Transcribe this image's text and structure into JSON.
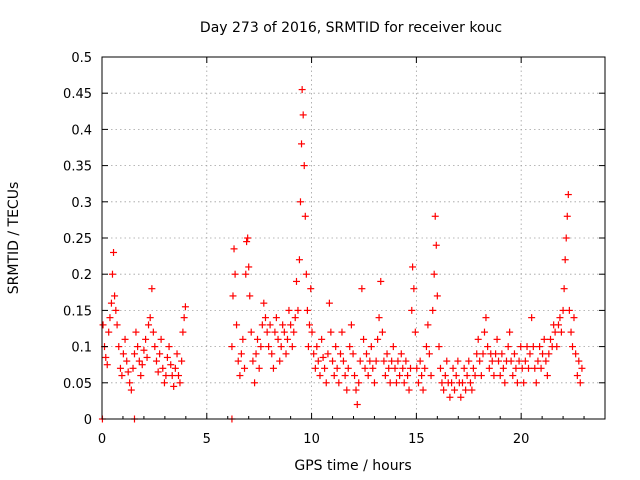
{
  "chart_data": {
    "type": "scatter",
    "title": "Day 273 of 2016, SRMTID for receiver kouc",
    "xlabel": "GPS time / hours",
    "ylabel": "SRMTID / TECUs",
    "xlim": [
      0,
      24
    ],
    "ylim": [
      0,
      0.5
    ],
    "xticks": [
      0,
      5,
      10,
      15,
      20
    ],
    "xtick_labels": [
      "0",
      "5",
      "10",
      "15",
      "20"
    ],
    "yticks": [
      0,
      0.05,
      0.1,
      0.15,
      0.2,
      0.25,
      0.3,
      0.35,
      0.4,
      0.45,
      0.5
    ],
    "ytick_labels": [
      "0",
      "0.05",
      "0.1",
      "0.15",
      "0.2",
      "0.25",
      "0.3",
      "0.35",
      "0.4",
      "0.45",
      "0.5"
    ],
    "grid": true,
    "marker": "+",
    "color": "#ff0000",
    "series": [
      {
        "name": "SRMTID",
        "points": [
          [
            0.05,
            0.13
          ],
          [
            0.12,
            0.1
          ],
          [
            0.18,
            0.085
          ],
          [
            0.25,
            0.075
          ],
          [
            0.32,
            0.12
          ],
          [
            0.38,
            0.14
          ],
          [
            0.45,
            0.16
          ],
          [
            0.5,
            0.2
          ],
          [
            0.55,
            0.23
          ],
          [
            0.6,
            0.17
          ],
          [
            0.66,
            0.15
          ],
          [
            0.72,
            0.13
          ],
          [
            0.8,
            0.1
          ],
          [
            0.88,
            0.07
          ],
          [
            0.95,
            0.06
          ],
          [
            1.02,
            0.09
          ],
          [
            1.1,
            0.11
          ],
          [
            1.18,
            0.08
          ],
          [
            1.25,
            0.065
          ],
          [
            1.32,
            0.05
          ],
          [
            1.4,
            0.04
          ],
          [
            1.48,
            0.07
          ],
          [
            1.55,
            0.09
          ],
          [
            1.62,
            0.12
          ],
          [
            1.7,
            0.1
          ],
          [
            1.78,
            0.08
          ],
          [
            1.85,
            0.06
          ],
          [
            1.92,
            0.075
          ],
          [
            2.0,
            0.095
          ],
          [
            2.08,
            0.11
          ],
          [
            2.15,
            0.085
          ],
          [
            2.22,
            0.13
          ],
          [
            2.3,
            0.14
          ],
          [
            2.38,
            0.18
          ],
          [
            2.45,
            0.12
          ],
          [
            2.52,
            0.1
          ],
          [
            2.6,
            0.08
          ],
          [
            2.68,
            0.065
          ],
          [
            2.75,
            0.09
          ],
          [
            2.82,
            0.11
          ],
          [
            2.9,
            0.07
          ],
          [
            2.98,
            0.05
          ],
          [
            3.05,
            0.06
          ],
          [
            3.12,
            0.085
          ],
          [
            3.2,
            0.1
          ],
          [
            3.28,
            0.075
          ],
          [
            3.35,
            0.06
          ],
          [
            3.42,
            0.045
          ],
          [
            3.5,
            0.07
          ],
          [
            3.58,
            0.09
          ],
          [
            3.65,
            0.06
          ],
          [
            3.72,
            0.05
          ],
          [
            3.8,
            0.08
          ],
          [
            3.86,
            0.12
          ],
          [
            3.92,
            0.14
          ],
          [
            3.98,
            0.155
          ],
          [
            6.2,
            0.1
          ],
          [
            6.25,
            0.17
          ],
          [
            6.3,
            0.235
          ],
          [
            6.35,
            0.2
          ],
          [
            6.42,
            0.13
          ],
          [
            6.5,
            0.08
          ],
          [
            6.58,
            0.06
          ],
          [
            6.65,
            0.09
          ],
          [
            6.72,
            0.11
          ],
          [
            6.8,
            0.07
          ],
          [
            6.86,
            0.2
          ],
          [
            6.9,
            0.245
          ],
          [
            6.95,
            0.25
          ],
          [
            7.0,
            0.21
          ],
          [
            7.05,
            0.17
          ],
          [
            7.12,
            0.12
          ],
          [
            7.2,
            0.08
          ],
          [
            7.28,
            0.05
          ],
          [
            7.35,
            0.09
          ],
          [
            7.42,
            0.11
          ],
          [
            7.5,
            0.07
          ],
          [
            7.58,
            0.1
          ],
          [
            7.65,
            0.13
          ],
          [
            7.72,
            0.16
          ],
          [
            7.8,
            0.14
          ],
          [
            7.88,
            0.12
          ],
          [
            7.95,
            0.1
          ],
          [
            8.02,
            0.13
          ],
          [
            8.1,
            0.09
          ],
          [
            8.18,
            0.07
          ],
          [
            8.25,
            0.12
          ],
          [
            8.32,
            0.14
          ],
          [
            8.4,
            0.11
          ],
          [
            8.48,
            0.08
          ],
          [
            8.55,
            0.1
          ],
          [
            8.62,
            0.13
          ],
          [
            8.7,
            0.12
          ],
          [
            8.78,
            0.09
          ],
          [
            8.85,
            0.11
          ],
          [
            8.92,
            0.15
          ],
          [
            9.0,
            0.13
          ],
          [
            9.08,
            0.1
          ],
          [
            9.15,
            0.12
          ],
          [
            9.22,
            0.14
          ],
          [
            9.28,
            0.19
          ],
          [
            9.35,
            0.15
          ],
          [
            9.42,
            0.22
          ],
          [
            9.47,
            0.3
          ],
          [
            9.52,
            0.38
          ],
          [
            9.55,
            0.455
          ],
          [
            9.6,
            0.42
          ],
          [
            9.65,
            0.35
          ],
          [
            9.7,
            0.28
          ],
          [
            9.75,
            0.2
          ],
          [
            9.8,
            0.15
          ],
          [
            9.85,
            0.1
          ],
          [
            9.9,
            0.13
          ],
          [
            9.96,
            0.18
          ],
          [
            10.02,
            0.12
          ],
          [
            10.1,
            0.09
          ],
          [
            10.18,
            0.07
          ],
          [
            10.25,
            0.1
          ],
          [
            10.32,
            0.08
          ],
          [
            10.4,
            0.06
          ],
          [
            10.48,
            0.11
          ],
          [
            10.55,
            0.085
          ],
          [
            10.62,
            0.07
          ],
          [
            10.7,
            0.05
          ],
          [
            10.78,
            0.09
          ],
          [
            10.85,
            0.16
          ],
          [
            10.92,
            0.12
          ],
          [
            11.0,
            0.08
          ],
          [
            11.08,
            0.06
          ],
          [
            11.15,
            0.1
          ],
          [
            11.22,
            0.07
          ],
          [
            11.3,
            0.05
          ],
          [
            11.38,
            0.09
          ],
          [
            11.45,
            0.12
          ],
          [
            11.52,
            0.08
          ],
          [
            11.6,
            0.06
          ],
          [
            11.68,
            0.04
          ],
          [
            11.75,
            0.07
          ],
          [
            11.82,
            0.1
          ],
          [
            11.9,
            0.13
          ],
          [
            11.98,
            0.09
          ],
          [
            12.05,
            0.06
          ],
          [
            12.12,
            0.04
          ],
          [
            12.18,
            0.02
          ],
          [
            12.25,
            0.05
          ],
          [
            12.32,
            0.08
          ],
          [
            12.4,
            0.18
          ],
          [
            12.48,
            0.11
          ],
          [
            12.55,
            0.07
          ],
          [
            12.62,
            0.09
          ],
          [
            12.7,
            0.06
          ],
          [
            12.78,
            0.08
          ],
          [
            12.85,
            0.1
          ],
          [
            12.92,
            0.07
          ],
          [
            13.0,
            0.05
          ],
          [
            13.08,
            0.08
          ],
          [
            13.15,
            0.11
          ],
          [
            13.22,
            0.14
          ],
          [
            13.3,
            0.19
          ],
          [
            13.38,
            0.12
          ],
          [
            13.45,
            0.08
          ],
          [
            13.52,
            0.06
          ],
          [
            13.6,
            0.09
          ],
          [
            13.68,
            0.07
          ],
          [
            13.75,
            0.05
          ],
          [
            13.82,
            0.08
          ],
          [
            13.9,
            0.1
          ],
          [
            13.98,
            0.07
          ],
          [
            14.05,
            0.05
          ],
          [
            14.12,
            0.08
          ],
          [
            14.2,
            0.06
          ],
          [
            14.28,
            0.09
          ],
          [
            14.35,
            0.07
          ],
          [
            14.42,
            0.05
          ],
          [
            14.5,
            0.08
          ],
          [
            14.58,
            0.06
          ],
          [
            14.65,
            0.04
          ],
          [
            14.72,
            0.07
          ],
          [
            14.78,
            0.15
          ],
          [
            14.82,
            0.21
          ],
          [
            14.88,
            0.18
          ],
          [
            14.95,
            0.12
          ],
          [
            15.02,
            0.07
          ],
          [
            15.1,
            0.05
          ],
          [
            15.18,
            0.08
          ],
          [
            15.25,
            0.06
          ],
          [
            15.32,
            0.04
          ],
          [
            15.4,
            0.07
          ],
          [
            15.48,
            0.1
          ],
          [
            15.55,
            0.13
          ],
          [
            15.62,
            0.09
          ],
          [
            15.7,
            0.06
          ],
          [
            15.78,
            0.15
          ],
          [
            15.85,
            0.2
          ],
          [
            15.9,
            0.28
          ],
          [
            15.95,
            0.24
          ],
          [
            16.0,
            0.17
          ],
          [
            16.08,
            0.1
          ],
          [
            16.15,
            0.07
          ],
          [
            16.22,
            0.05
          ],
          [
            16.3,
            0.04
          ],
          [
            16.38,
            0.06
          ],
          [
            16.45,
            0.08
          ],
          [
            16.52,
            0.05
          ],
          [
            16.6,
            0.03
          ],
          [
            16.68,
            0.05
          ],
          [
            16.75,
            0.07
          ],
          [
            16.82,
            0.04
          ],
          [
            16.9,
            0.06
          ],
          [
            16.98,
            0.08
          ],
          [
            17.05,
            0.05
          ],
          [
            17.12,
            0.03
          ],
          [
            17.2,
            0.05
          ],
          [
            17.28,
            0.07
          ],
          [
            17.35,
            0.04
          ],
          [
            17.42,
            0.06
          ],
          [
            17.5,
            0.08
          ],
          [
            17.58,
            0.05
          ],
          [
            17.65,
            0.04
          ],
          [
            17.72,
            0.07
          ],
          [
            17.8,
            0.06
          ],
          [
            17.88,
            0.09
          ],
          [
            17.95,
            0.11
          ],
          [
            18.02,
            0.08
          ],
          [
            18.1,
            0.06
          ],
          [
            18.18,
            0.09
          ],
          [
            18.25,
            0.12
          ],
          [
            18.32,
            0.14
          ],
          [
            18.4,
            0.1
          ],
          [
            18.48,
            0.07
          ],
          [
            18.55,
            0.09
          ],
          [
            18.62,
            0.08
          ],
          [
            18.7,
            0.06
          ],
          [
            18.78,
            0.09
          ],
          [
            18.85,
            0.11
          ],
          [
            18.92,
            0.08
          ],
          [
            19.0,
            0.06
          ],
          [
            19.08,
            0.09
          ],
          [
            19.15,
            0.07
          ],
          [
            19.22,
            0.05
          ],
          [
            19.3,
            0.08
          ],
          [
            19.38,
            0.1
          ],
          [
            19.45,
            0.12
          ],
          [
            19.52,
            0.08
          ],
          [
            19.6,
            0.06
          ],
          [
            19.68,
            0.09
          ],
          [
            19.75,
            0.07
          ],
          [
            19.82,
            0.05
          ],
          [
            19.9,
            0.08
          ],
          [
            19.98,
            0.1
          ],
          [
            20.05,
            0.07
          ],
          [
            20.12,
            0.05
          ],
          [
            20.2,
            0.08
          ],
          [
            20.28,
            0.1
          ],
          [
            20.35,
            0.07
          ],
          [
            20.42,
            0.09
          ],
          [
            20.5,
            0.14
          ],
          [
            20.58,
            0.1
          ],
          [
            20.65,
            0.07
          ],
          [
            20.72,
            0.05
          ],
          [
            20.8,
            0.08
          ],
          [
            20.88,
            0.1
          ],
          [
            20.95,
            0.07
          ],
          [
            21.02,
            0.09
          ],
          [
            21.1,
            0.11
          ],
          [
            21.18,
            0.08
          ],
          [
            21.25,
            0.06
          ],
          [
            21.32,
            0.09
          ],
          [
            21.4,
            0.11
          ],
          [
            21.48,
            0.1
          ],
          [
            21.55,
            0.13
          ],
          [
            21.62,
            0.12
          ],
          [
            21.7,
            0.1
          ],
          [
            21.78,
            0.13
          ],
          [
            21.85,
            0.14
          ],
          [
            21.92,
            0.12
          ],
          [
            22.0,
            0.15
          ],
          [
            22.05,
            0.18
          ],
          [
            22.1,
            0.22
          ],
          [
            22.15,
            0.25
          ],
          [
            22.2,
            0.28
          ],
          [
            22.25,
            0.31
          ],
          [
            22.3,
            0.15
          ],
          [
            22.38,
            0.12
          ],
          [
            22.45,
            0.1
          ],
          [
            22.52,
            0.14
          ],
          [
            22.6,
            0.09
          ],
          [
            22.68,
            0.06
          ],
          [
            22.75,
            0.08
          ],
          [
            22.82,
            0.05
          ],
          [
            22.9,
            0.07
          ],
          [
            0.02,
            0.0
          ],
          [
            1.55,
            0.0
          ],
          [
            6.2,
            0.0
          ]
        ]
      }
    ]
  }
}
